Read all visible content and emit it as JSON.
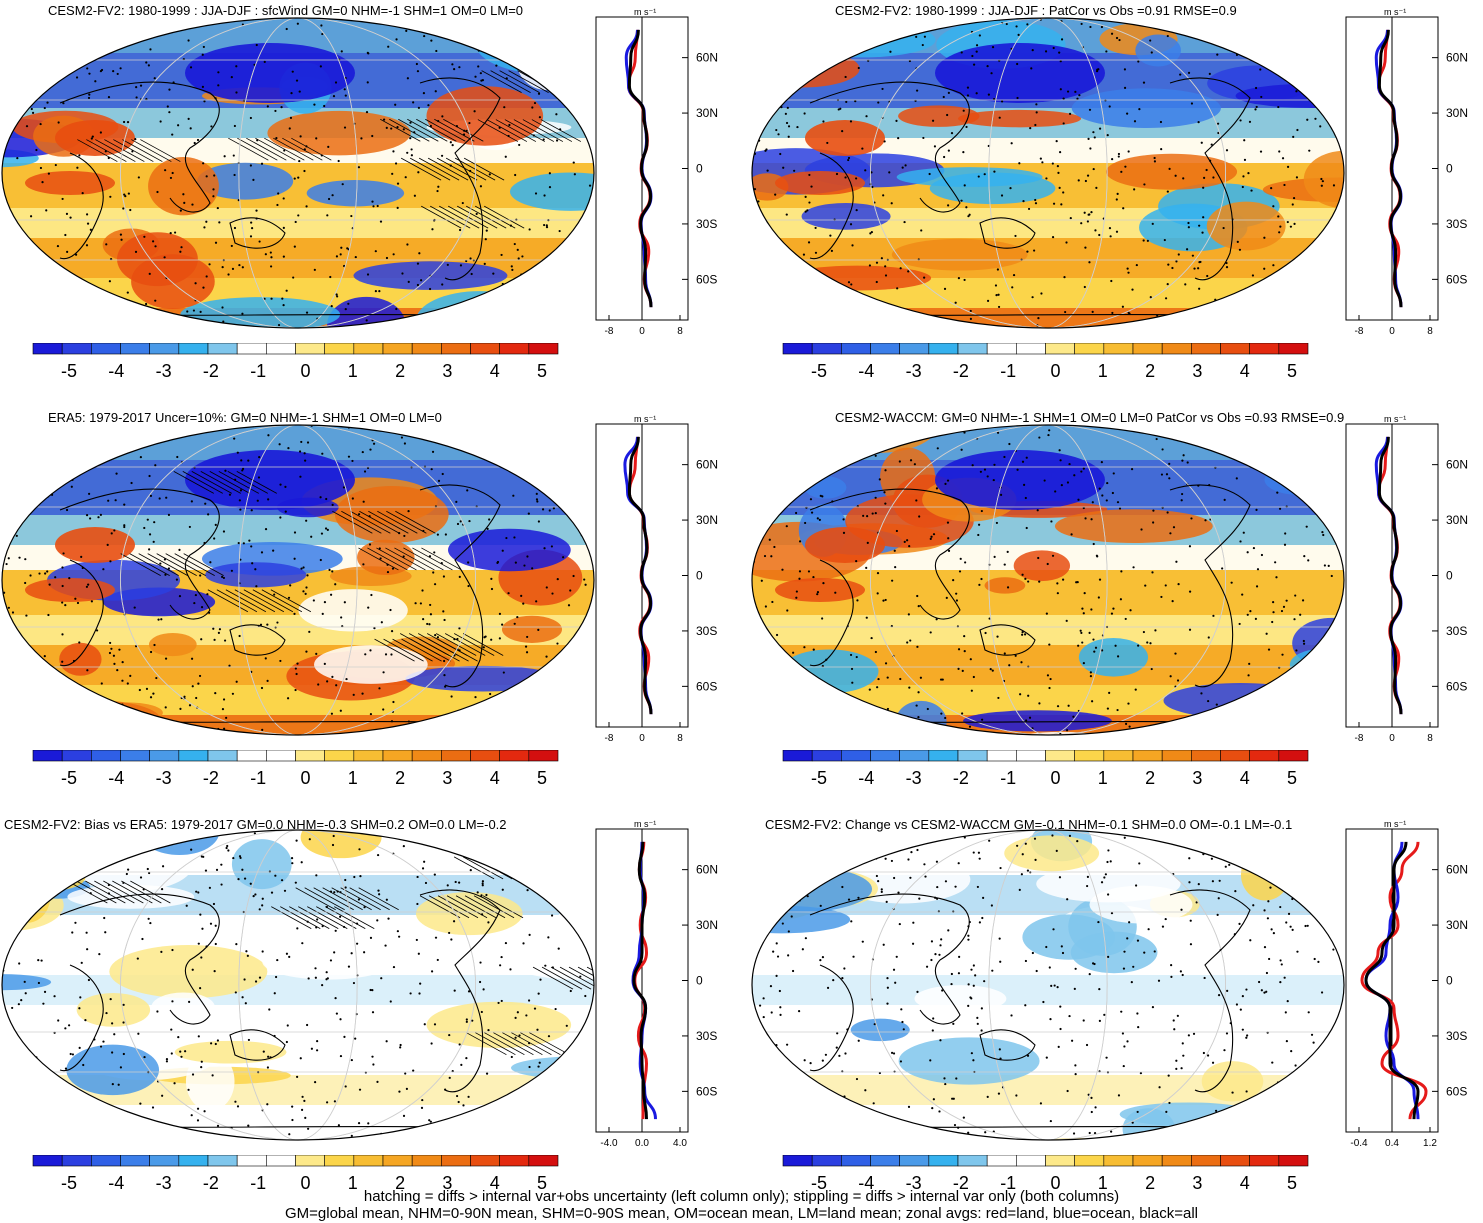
{
  "panels": [
    {
      "id": "p1",
      "title": "CESM2-FV2: 1980-1999 : JJA-DJF : sfcWind GM=0 NHM=-1 SHM=1 OM=0 LM=0",
      "zonal_ticks": [
        "-8",
        "0",
        "8"
      ],
      "hatch": true
    },
    {
      "id": "p2",
      "title": "CESM2-FV2: 1980-1999 : JJA-DJF : PatCor vs Obs =0.91 RMSE=0.9",
      "zonal_ticks": [
        "-8",
        "0",
        "8"
      ],
      "hatch": false
    },
    {
      "id": "p3",
      "title": "ERA5: 1979-2017 Uncer=10%: GM=0 NHM=-1 SHM=1 OM=0 LM=0",
      "zonal_ticks": [
        "-8",
        "0",
        "8"
      ],
      "hatch": true
    },
    {
      "id": "p4",
      "title": "CESM2-WACCM: GM=0 NHM=-1 SHM=1 OM=0 LM=0 PatCor vs Obs =0.93 RMSE=0.9",
      "zonal_ticks": [
        "-8",
        "0",
        "8"
      ],
      "hatch": false
    },
    {
      "id": "p5",
      "title": "CESM2-FV2: Bias vs ERA5: 1979-2017 GM=0.0 NHM=-0.3 SHM=0.2 OM=0.0 LM=-0.2",
      "zonal_ticks": [
        "-4.0",
        "0.0",
        "4.0"
      ],
      "hatch": true
    },
    {
      "id": "p6",
      "title": "CESM2-FV2: Change vs CESM2-WACCM GM=-0.1 NHM=-0.1 SHM=0.0 OM=-0.1 LM=-0.1",
      "zonal_ticks": [
        "-0.4",
        "0.4",
        "1.2"
      ],
      "hatch": false
    }
  ],
  "units_label": "m s⁻¹",
  "lat_labels": [
    "60N",
    "30N",
    "0",
    "30S",
    "60S"
  ],
  "colorbar": {
    "labels": [
      "-5",
      "-4",
      "-3",
      "-2",
      "-1",
      "0",
      "1",
      "2",
      "3",
      "4",
      "5"
    ],
    "colors": [
      "#1a1ad8",
      "#2b3fe0",
      "#2f5fe6",
      "#3b7ee9",
      "#4a9ae8",
      "#35b1ee",
      "#7fc6ec",
      "#ffffff",
      "#ffffff",
      "#fde98a",
      "#fbd54a",
      "#f7bd33",
      "#f5a623",
      "#f08a17",
      "#eb6d12",
      "#e84e10",
      "#e3290f",
      "#d40f0f"
    ]
  },
  "chart_data": {
    "type": "heatmap",
    "variable": "sfcWind JJA-DJF",
    "units": "m s-1",
    "colorbar_range": [
      -5.5,
      5.5
    ],
    "zonal_legend": {
      "land": "red",
      "ocean": "blue",
      "all": "black"
    },
    "zonal_series_lats": [
      75,
      60,
      45,
      30,
      15,
      0,
      -15,
      -30,
      -45,
      -60,
      -75
    ],
    "zonal_series": [
      {
        "panel": "p1",
        "land": [
          -1,
          -1.5,
          -3,
          0.3,
          1.2,
          -0.2,
          1.8,
          -0.5,
          1.5,
          0.5,
          2
        ],
        "ocean": [
          -1,
          -3.5,
          -3,
          0.5,
          1,
          0,
          2,
          -0.2,
          0.5,
          0.8,
          2
        ],
        "all": [
          -0.8,
          -2.5,
          -2.8,
          0.4,
          1.1,
          -0.1,
          1.9,
          -0.3,
          0.8,
          0.6,
          2
        ]
      },
      {
        "panel": "p2",
        "land": [
          -1,
          -1.5,
          -3,
          0.3,
          1.2,
          -0.2,
          1.8,
          -0.5,
          1.5,
          0.5,
          2
        ],
        "ocean": [
          -1,
          -3.5,
          -3,
          0.5,
          1,
          0,
          2,
          -0.2,
          0.5,
          0.8,
          2
        ],
        "all": [
          -0.8,
          -2.5,
          -2.8,
          0.4,
          1.1,
          -0.1,
          1.9,
          -0.3,
          0.8,
          0.6,
          2
        ]
      },
      {
        "panel": "p3",
        "land": [
          -1,
          -1.5,
          -2.8,
          0.3,
          1.2,
          -0.2,
          1.8,
          -0.5,
          1.5,
          0.5,
          2
        ],
        "ocean": [
          -1,
          -3.8,
          -3.2,
          0.5,
          1,
          0,
          2,
          -0.2,
          0.5,
          0.8,
          2
        ],
        "all": [
          -0.8,
          -2.5,
          -2.8,
          0.4,
          1.1,
          -0.1,
          1.9,
          -0.3,
          0.8,
          0.6,
          2
        ]
      },
      {
        "panel": "p4",
        "land": [
          -1,
          -1.5,
          -3,
          0.3,
          1.2,
          -0.2,
          1.8,
          -0.5,
          1.5,
          0.5,
          2
        ],
        "ocean": [
          -1,
          -3.5,
          -3,
          0.5,
          1,
          0,
          2,
          -0.2,
          0.5,
          0.8,
          2
        ],
        "all": [
          -0.8,
          -2.5,
          -2.8,
          0.4,
          1.1,
          -0.1,
          1.9,
          -0.3,
          0.8,
          0.6,
          2
        ]
      },
      {
        "panel": "p5",
        "land": [
          0.2,
          -0.3,
          0.4,
          -0.2,
          0.5,
          -0.8,
          0.3,
          -0.4,
          0.5,
          0.2,
          0.1
        ],
        "ocean": [
          0,
          -0.2,
          0.2,
          0,
          -0.3,
          -1,
          0.4,
          0,
          -0.2,
          0.3,
          1.5
        ],
        "all": [
          0.1,
          -0.3,
          0.3,
          0,
          0,
          -0.9,
          0.4,
          -0.1,
          0,
          0.2,
          0.5
        ]
      },
      {
        "panel": "p6",
        "land": [
          0.9,
          0.5,
          0.2,
          0.4,
          -0.1,
          -0.5,
          0.3,
          0.4,
          0.0,
          1.1,
          0.7
        ],
        "ocean": [
          0.5,
          0.3,
          0.4,
          0.2,
          0.1,
          -0.4,
          0.2,
          0.1,
          0.3,
          0.8,
          0.9
        ],
        "all": [
          0.6,
          0.3,
          0.3,
          0.3,
          0.0,
          -0.4,
          0.2,
          0.2,
          0.2,
          0.9,
          0.8
        ]
      }
    ]
  },
  "footer": {
    "line1": "hatching = diffs > internal var+obs uncertainty (left column only); stippling = diffs > internal var only (both columns)",
    "line2": "GM=global mean, NHM=0-90N mean, SHM=0-90S mean, OM=ocean mean, LM=land mean; zonal avgs: red=land, blue=ocean, black=all"
  }
}
